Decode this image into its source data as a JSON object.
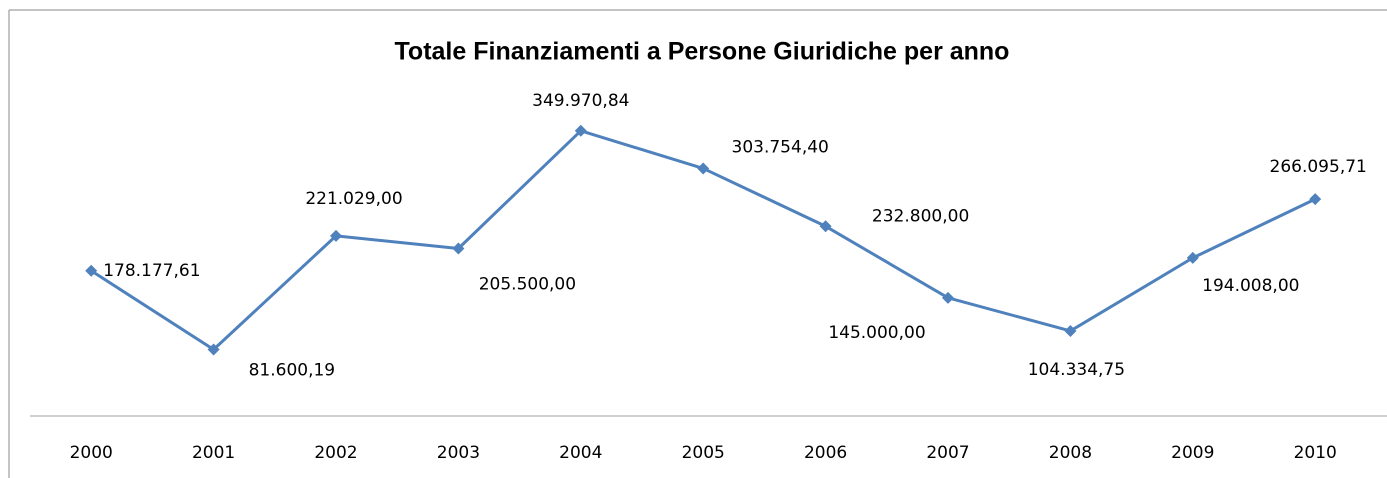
{
  "chart_data": {
    "type": "line",
    "title": "Totale Finanziamenti a Persone Giuridiche per anno",
    "categories": [
      "2000",
      "2001",
      "2002",
      "2003",
      "2004",
      "2005",
      "2006",
      "2007",
      "2008",
      "2009",
      "2010"
    ],
    "series": [
      {
        "name": "Totale",
        "color": "#4f81bd",
        "values": [
          178177.61,
          81600.19,
          221029.0,
          205500.0,
          349970.84,
          303754.4,
          232800.0,
          145000.0,
          104334.75,
          194008.0,
          266095.71
        ],
        "value_labels": [
          "178.177,61",
          "81.600,19",
          "221.029,00",
          "205.500,00",
          "349.970,84",
          "303.754,40",
          "232.800,00",
          "145.000,00",
          "104.334,75",
          "194.008,00",
          "266.095,71"
        ]
      }
    ],
    "ylim": [
      0,
      400000
    ]
  }
}
